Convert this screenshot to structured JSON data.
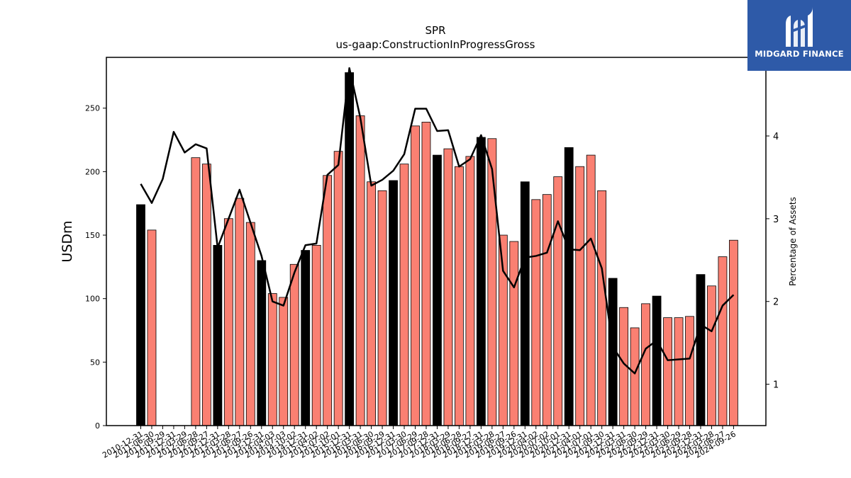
{
  "brand": {
    "name": "MIDGARD FINANCE",
    "logo_icon": "midgard-logo-icon",
    "color": "#2e5aa8"
  },
  "chart_data": {
    "type": "bar",
    "title": "SPR",
    "subtitle": "us-gaap:ConstructionInProgressGross",
    "ylabel": "USDm",
    "y2label": "Percentage of Assets",
    "ylim": [
      0,
      290
    ],
    "y2lim": [
      0.5,
      4.95
    ],
    "yticks": [
      0,
      50,
      100,
      150,
      200,
      250
    ],
    "y2ticks": [
      1,
      2,
      3,
      4
    ],
    "colors": {
      "annual": "#000000",
      "quarterly": "#fa8072",
      "line": "#000000"
    },
    "categories": [
      "2010-12-31",
      "2011-06-30",
      "2011-09-29",
      "2011-12-31",
      "2012-03-29",
      "2012-06-28",
      "2012-09-27",
      "2012-12-31",
      "2013-03-28",
      "2013-06-27",
      "2013-09-26",
      "2013-12-31",
      "2014-04-03",
      "2014-07-03",
      "2014-10-02",
      "2014-12-31",
      "2015-04-02",
      "2015-07-02",
      "2015-10-01",
      "2015-12-31",
      "2016-03-31",
      "2016-06-30",
      "2016-09-29",
      "2016-12-31",
      "2017-03-30",
      "2017-06-29",
      "2017-09-28",
      "2017-12-31",
      "2018-03-29",
      "2018-06-28",
      "2018-09-27",
      "2018-12-31",
      "2019-03-28",
      "2019-06-27",
      "2019-09-26",
      "2019-12-31",
      "2020-04-02",
      "2020-07-02",
      "2020-10-01",
      "2020-12-31",
      "2021-04-01",
      "2021-07-01",
      "2021-09-30",
      "2021-12-31",
      "2022-03-31",
      "2022-06-30",
      "2022-09-29",
      "2022-12-31",
      "2023-03-30",
      "2023-06-29",
      "2023-09-28",
      "2023-12-31",
      "2024-03-28",
      "2024-06-27",
      "2024-09-26"
    ],
    "values": [
      174,
      154,
      null,
      null,
      null,
      211,
      206,
      142,
      163,
      179,
      160,
      130,
      104,
      101,
      127,
      138,
      142,
      197,
      216,
      278,
      244,
      192,
      185,
      193,
      206,
      236,
      239,
      213,
      218,
      204,
      212,
      227,
      226,
      150,
      145,
      192,
      178,
      182,
      196,
      219,
      204,
      213,
      185,
      116,
      93,
      77,
      96,
      102,
      85,
      85,
      86,
      119,
      110,
      133,
      146
    ],
    "annual": [
      true,
      false,
      false,
      false,
      false,
      false,
      false,
      true,
      false,
      false,
      false,
      true,
      false,
      false,
      false,
      true,
      false,
      false,
      false,
      true,
      false,
      false,
      false,
      true,
      false,
      false,
      false,
      true,
      false,
      false,
      false,
      true,
      false,
      false,
      false,
      true,
      false,
      false,
      false,
      true,
      false,
      false,
      false,
      true,
      false,
      false,
      false,
      true,
      false,
      false,
      false,
      true,
      false,
      false,
      false
    ],
    "pct_assets": [
      3.42,
      3.19,
      3.48,
      4.05,
      3.8,
      3.9,
      3.85,
      2.65,
      3.0,
      3.35,
      2.95,
      2.55,
      2.0,
      1.95,
      2.35,
      2.68,
      2.7,
      3.53,
      3.65,
      4.82,
      4.22,
      3.4,
      3.47,
      3.58,
      3.78,
      4.33,
      4.33,
      4.06,
      4.07,
      3.63,
      3.72,
      4.01,
      3.6,
      2.37,
      2.17,
      2.53,
      2.55,
      2.59,
      2.97,
      2.63,
      2.62,
      2.76,
      2.4,
      1.45,
      1.25,
      1.13,
      1.43,
      1.53,
      1.29,
      1.3,
      1.31,
      1.72,
      1.64,
      1.95,
      2.08
    ]
  }
}
